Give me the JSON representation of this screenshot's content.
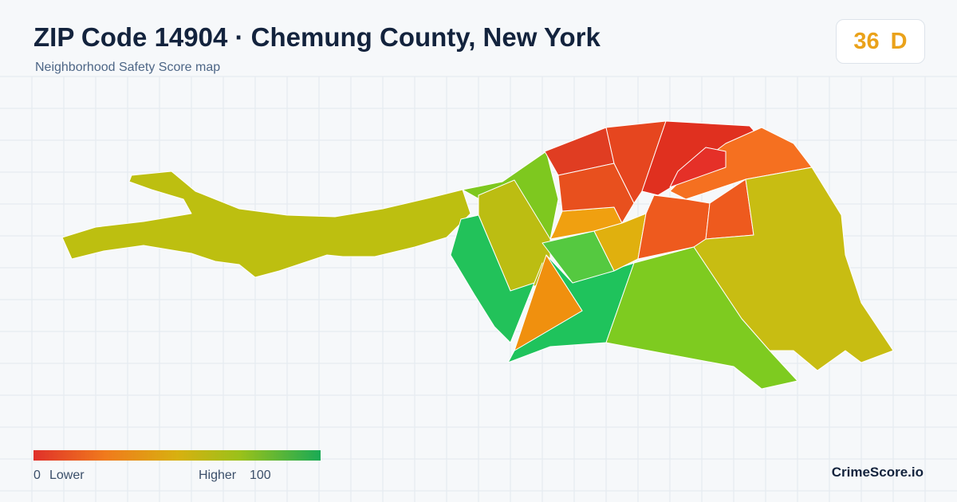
{
  "header": {
    "title": "ZIP Code 14904 · Chemung County, New York",
    "subtitle": "Neighborhood Safety Score map"
  },
  "score": {
    "value": 36,
    "grade": "D"
  },
  "legend": {
    "min": 0,
    "min_label": "Lower",
    "max_label": "Higher",
    "max": 100
  },
  "footer": {
    "brand": "CrimeScore.io"
  }
}
